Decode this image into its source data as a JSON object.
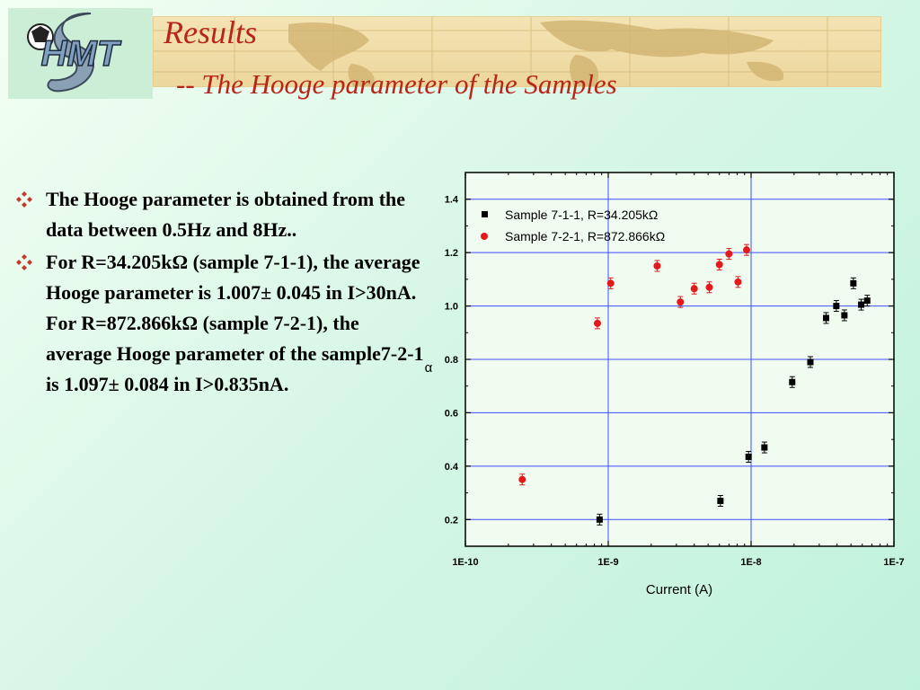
{
  "header": {
    "title": "Results",
    "subtitle": "-- The Hooge parameter of the Samples",
    "logo_text": "HMT"
  },
  "bullets": [
    "The Hooge parameter is obtained from the data between  0.5Hz and 8Hz..",
    "For R=34.205kΩ (sample 7-1-1), the average Hooge parameter is 1.007± 0.045 in I>30nA. For R=872.866kΩ (sample 7-2-1), the average Hooge parameter of the sample7-2-1 is 1.097± 0.084 in I>0.835nA."
  ],
  "colors": {
    "title": "#b8251a",
    "bullet_icon": "#c0392b",
    "series1": "#000000",
    "series2": "#e3191c",
    "grid": "#3f4fff"
  },
  "chart_data": {
    "type": "scatter",
    "xlabel": "Current (A)",
    "ylabel": "α",
    "xscale": "log",
    "xlim": [
      1e-10,
      1e-07
    ],
    "ylim": [
      0.1,
      1.5
    ],
    "x_ticks": [
      1e-10,
      1e-09,
      1e-08,
      1e-07
    ],
    "x_tick_labels": [
      "1E-10",
      "1E-9",
      "1E-8",
      "1E-7"
    ],
    "y_ticks": [
      0.2,
      0.4,
      0.6,
      0.8,
      1.0,
      1.2,
      1.4
    ],
    "y_tick_labels": [
      "0.2",
      "0.4",
      "0.6",
      "0.8",
      "1.0",
      "1.2",
      "1.4"
    ],
    "grid": true,
    "legend_position": "top-right",
    "series": [
      {
        "name": "Sample 7-1-1, R=34.205kΩ",
        "marker": "square",
        "color": "#000000",
        "points": [
          {
            "x": 8.7e-10,
            "y": 0.2
          },
          {
            "x": 6.1e-09,
            "y": 0.27
          },
          {
            "x": 9.6e-09,
            "y": 0.435
          },
          {
            "x": 1.24e-08,
            "y": 0.47
          },
          {
            "x": 1.94e-08,
            "y": 0.715
          },
          {
            "x": 2.6e-08,
            "y": 0.79
          },
          {
            "x": 3.35e-08,
            "y": 0.955
          },
          {
            "x": 3.95e-08,
            "y": 1.0
          },
          {
            "x": 4.5e-08,
            "y": 0.965
          },
          {
            "x": 5.2e-08,
            "y": 1.085
          },
          {
            "x": 5.9e-08,
            "y": 1.005
          },
          {
            "x": 6.5e-08,
            "y": 1.02
          }
        ]
      },
      {
        "name": "Sample 7-2-1, R=872.866kΩ",
        "marker": "circle",
        "color": "#e3191c",
        "points": [
          {
            "x": 2.5e-10,
            "y": 0.35
          },
          {
            "x": 8.4e-10,
            "y": 0.935
          },
          {
            "x": 1.04e-09,
            "y": 1.085
          },
          {
            "x": 2.2e-09,
            "y": 1.15
          },
          {
            "x": 3.2e-09,
            "y": 1.015
          },
          {
            "x": 4e-09,
            "y": 1.065
          },
          {
            "x": 5.1e-09,
            "y": 1.07
          },
          {
            "x": 6e-09,
            "y": 1.155
          },
          {
            "x": 7e-09,
            "y": 1.195
          },
          {
            "x": 8.1e-09,
            "y": 1.09
          },
          {
            "x": 9.3e-09,
            "y": 1.21
          }
        ]
      }
    ]
  }
}
